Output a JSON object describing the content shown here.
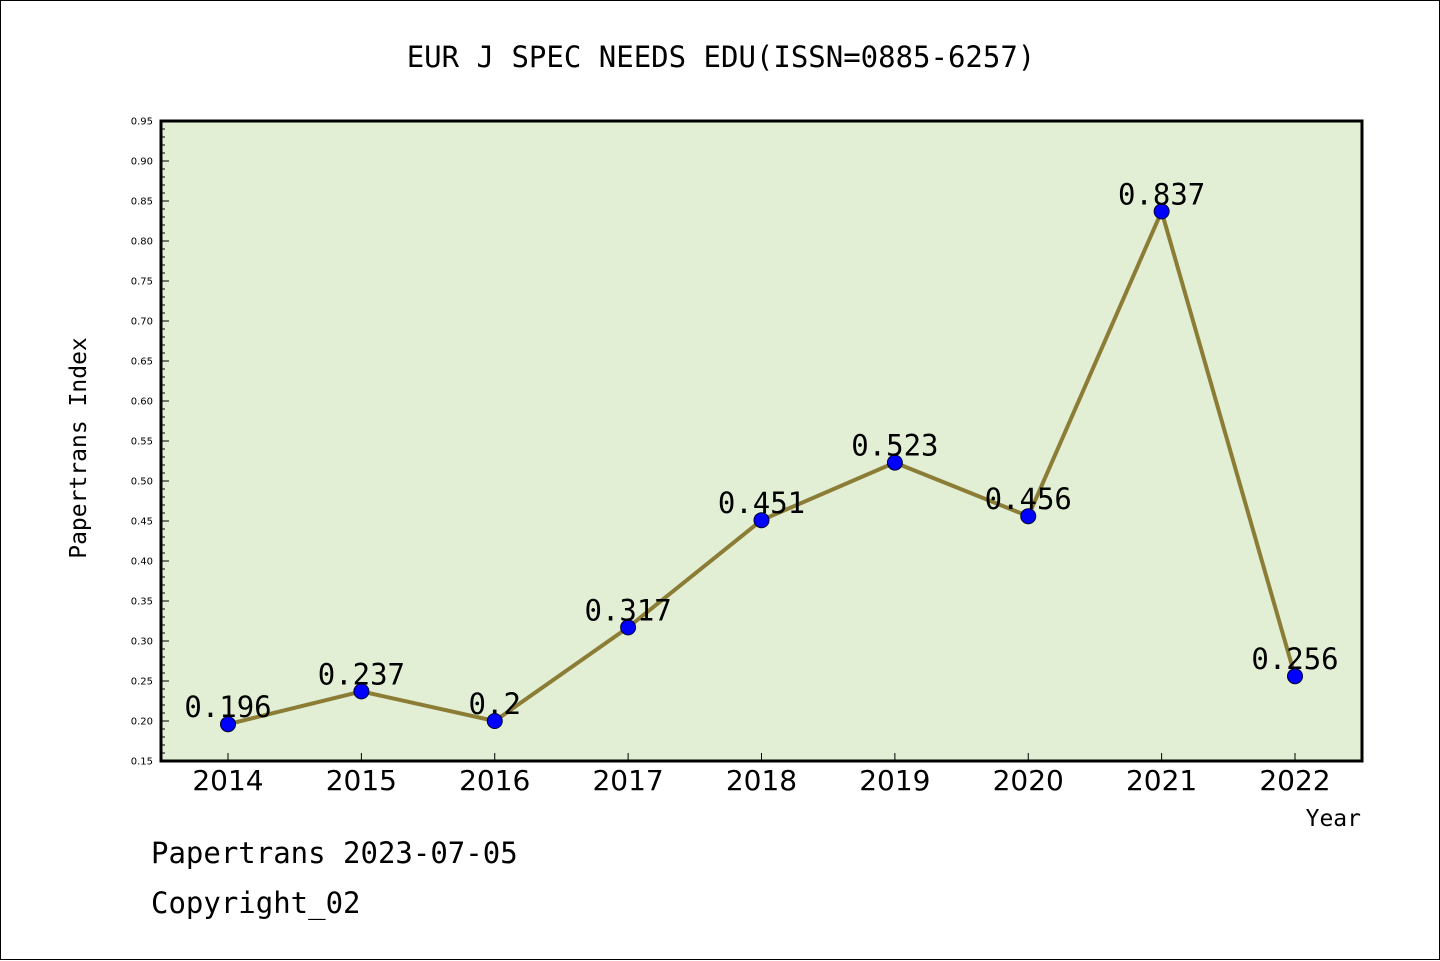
{
  "chart_data": {
    "type": "line",
    "title": "EUR J SPEC NEEDS EDU(ISSN=0885-6257)",
    "xlabel": "Year",
    "ylabel": "Papertrans Index",
    "categories": [
      "2014",
      "2015",
      "2016",
      "2017",
      "2018",
      "2019",
      "2020",
      "2021",
      "2022"
    ],
    "series": [
      {
        "values": [
          0.196,
          0.237,
          0.2,
          0.317,
          0.451,
          0.523,
          0.456,
          0.837,
          0.256
        ],
        "data_labels": [
          "0.196",
          "0.237",
          "0.2",
          "0.317",
          "0.451",
          "0.523",
          "0.456",
          "0.837",
          "0.256"
        ]
      }
    ],
    "ylim": [
      0.15,
      0.95
    ],
    "yticks": [
      "0.15",
      "0.20",
      "0.25",
      "0.30",
      "0.35",
      "0.40",
      "0.45",
      "0.50",
      "0.55",
      "0.60",
      "0.65",
      "0.70",
      "0.75",
      "0.80",
      "0.85",
      "0.90",
      "0.95"
    ],
    "grid": false,
    "legend": "none",
    "colors": {
      "plot_background": "#e2efd5",
      "line": "#8b7d35",
      "marker": "#0000ff"
    }
  },
  "footer": {
    "line1": "Papertrans 2023-07-05",
    "line2": "Copyright_02"
  }
}
